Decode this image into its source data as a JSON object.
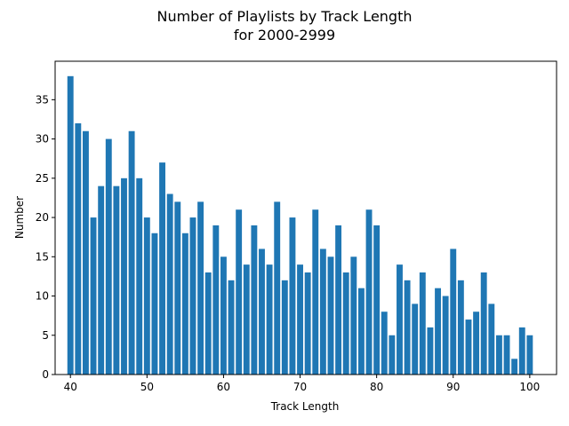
{
  "chart_data": {
    "type": "bar",
    "title_line1": "Number of Playlists by Track Length",
    "title_line2": "for 2000-2999",
    "xlabel": "Track Length",
    "ylabel": "Number",
    "xlim": [
      38.0,
      103.5
    ],
    "ylim": [
      0,
      39.9
    ],
    "xticks": [
      40,
      50,
      60,
      70,
      80,
      90,
      100
    ],
    "yticks": [
      0,
      5,
      10,
      15,
      20,
      25,
      30,
      35
    ],
    "bar_color": "#1f77b4",
    "grid": false,
    "x": [
      40,
      41,
      42,
      43,
      44,
      45,
      46,
      47,
      48,
      49,
      50,
      51,
      52,
      53,
      54,
      55,
      56,
      57,
      58,
      59,
      60,
      61,
      62,
      63,
      64,
      65,
      66,
      67,
      68,
      69,
      70,
      71,
      72,
      73,
      74,
      75,
      76,
      77,
      78,
      79,
      80,
      81,
      82,
      83,
      84,
      85,
      86,
      87,
      88,
      89,
      90,
      91,
      92,
      93,
      94,
      95,
      96,
      97,
      98,
      99,
      100
    ],
    "values": [
      38,
      32,
      31,
      20,
      24,
      30,
      24,
      25,
      31,
      25,
      20,
      18,
      27,
      23,
      22,
      18,
      20,
      22,
      13,
      19,
      15,
      12,
      21,
      14,
      19,
      16,
      14,
      22,
      12,
      20,
      14,
      13,
      21,
      16,
      15,
      19,
      13,
      15,
      11,
      21,
      19,
      8,
      5,
      14,
      12,
      9,
      13,
      6,
      11,
      10,
      16,
      12,
      7,
      8,
      13,
      9,
      5,
      5,
      2,
      6,
      5
    ]
  }
}
